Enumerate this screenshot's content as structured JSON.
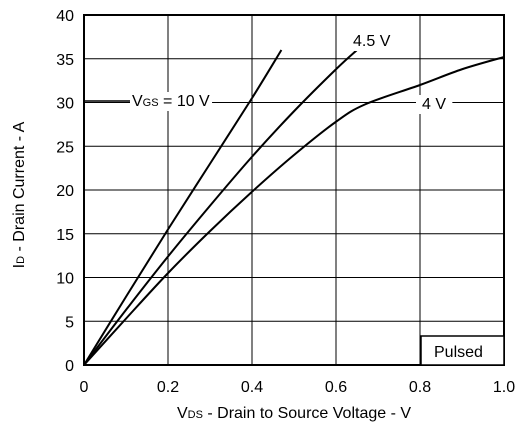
{
  "chart_data": {
    "type": "line",
    "title": "",
    "xlabel": {
      "main": "V",
      "sub": "DS",
      "rest": " - Drain to Source Voltage - V"
    },
    "ylabel": {
      "main": "I",
      "sub": "D",
      "rest": " - Drain Current - A"
    },
    "xlim": [
      0,
      1.0
    ],
    "ylim": [
      0,
      40
    ],
    "xticks": [
      "0",
      "0.2",
      "0.4",
      "0.6",
      "0.8",
      "1.0"
    ],
    "yticks": [
      "0",
      "5",
      "10",
      "15",
      "20",
      "25",
      "30",
      "35",
      "40"
    ],
    "grid": true,
    "series": [
      {
        "name": "VGS = 10 V",
        "x": [
          0,
          0.1,
          0.2,
          0.3,
          0.4,
          0.47
        ],
        "y": [
          0,
          7.8,
          15.5,
          23.0,
          30.5,
          36.0
        ]
      },
      {
        "name": "4.5 V",
        "x": [
          0,
          0.1,
          0.2,
          0.3,
          0.4,
          0.5,
          0.6,
          0.65
        ],
        "y": [
          0,
          6.3,
          12.4,
          18.2,
          23.8,
          29.0,
          33.8,
          36.0
        ]
      },
      {
        "name": "4 V",
        "x": [
          0,
          0.1,
          0.2,
          0.3,
          0.4,
          0.5,
          0.6,
          0.67,
          0.8,
          0.9,
          1.0
        ],
        "y": [
          0,
          5.3,
          10.5,
          15.3,
          19.8,
          24.0,
          27.8,
          29.8,
          32.0,
          33.8,
          35.2
        ]
      }
    ],
    "annotations": {
      "vgs_label": {
        "main": "V",
        "sub": "GS",
        "rest": " = 10 V"
      },
      "label_45": "4.5 V",
      "label_4": "4 V",
      "pulsed": "Pulsed"
    }
  }
}
